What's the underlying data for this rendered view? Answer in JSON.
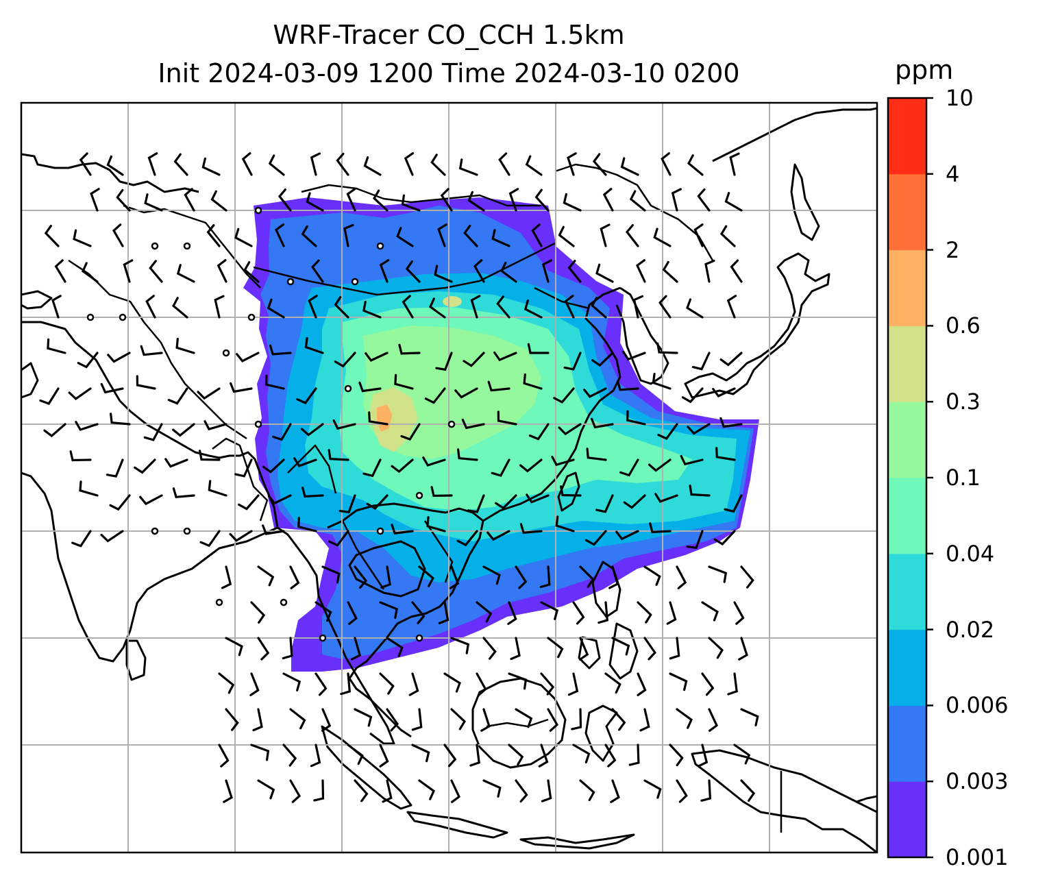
{
  "title": {
    "line1": "WRF-Tracer CO_CCH 1.5km",
    "line2": "Init 2024-03-09 1200 Time 2024-03-10 0200"
  },
  "colorbar": {
    "unit": "ppm",
    "levels": [
      "0.001",
      "0.003",
      "0.006",
      "0.02",
      "0.04",
      "0.1",
      "0.3",
      "0.6",
      "2",
      "4",
      "10"
    ],
    "colors": [
      "#6930fb",
      "#3478f3",
      "#05b0e8",
      "#2fdbd8",
      "#6ef9bb",
      "#96f89c",
      "#d0e188",
      "#fcb163",
      "#ff7038",
      "#ff2d17"
    ]
  },
  "map": {
    "grid": "on",
    "features": [
      "coastlines",
      "borders",
      "wind-barbs",
      "tracer-concentration"
    ]
  }
}
